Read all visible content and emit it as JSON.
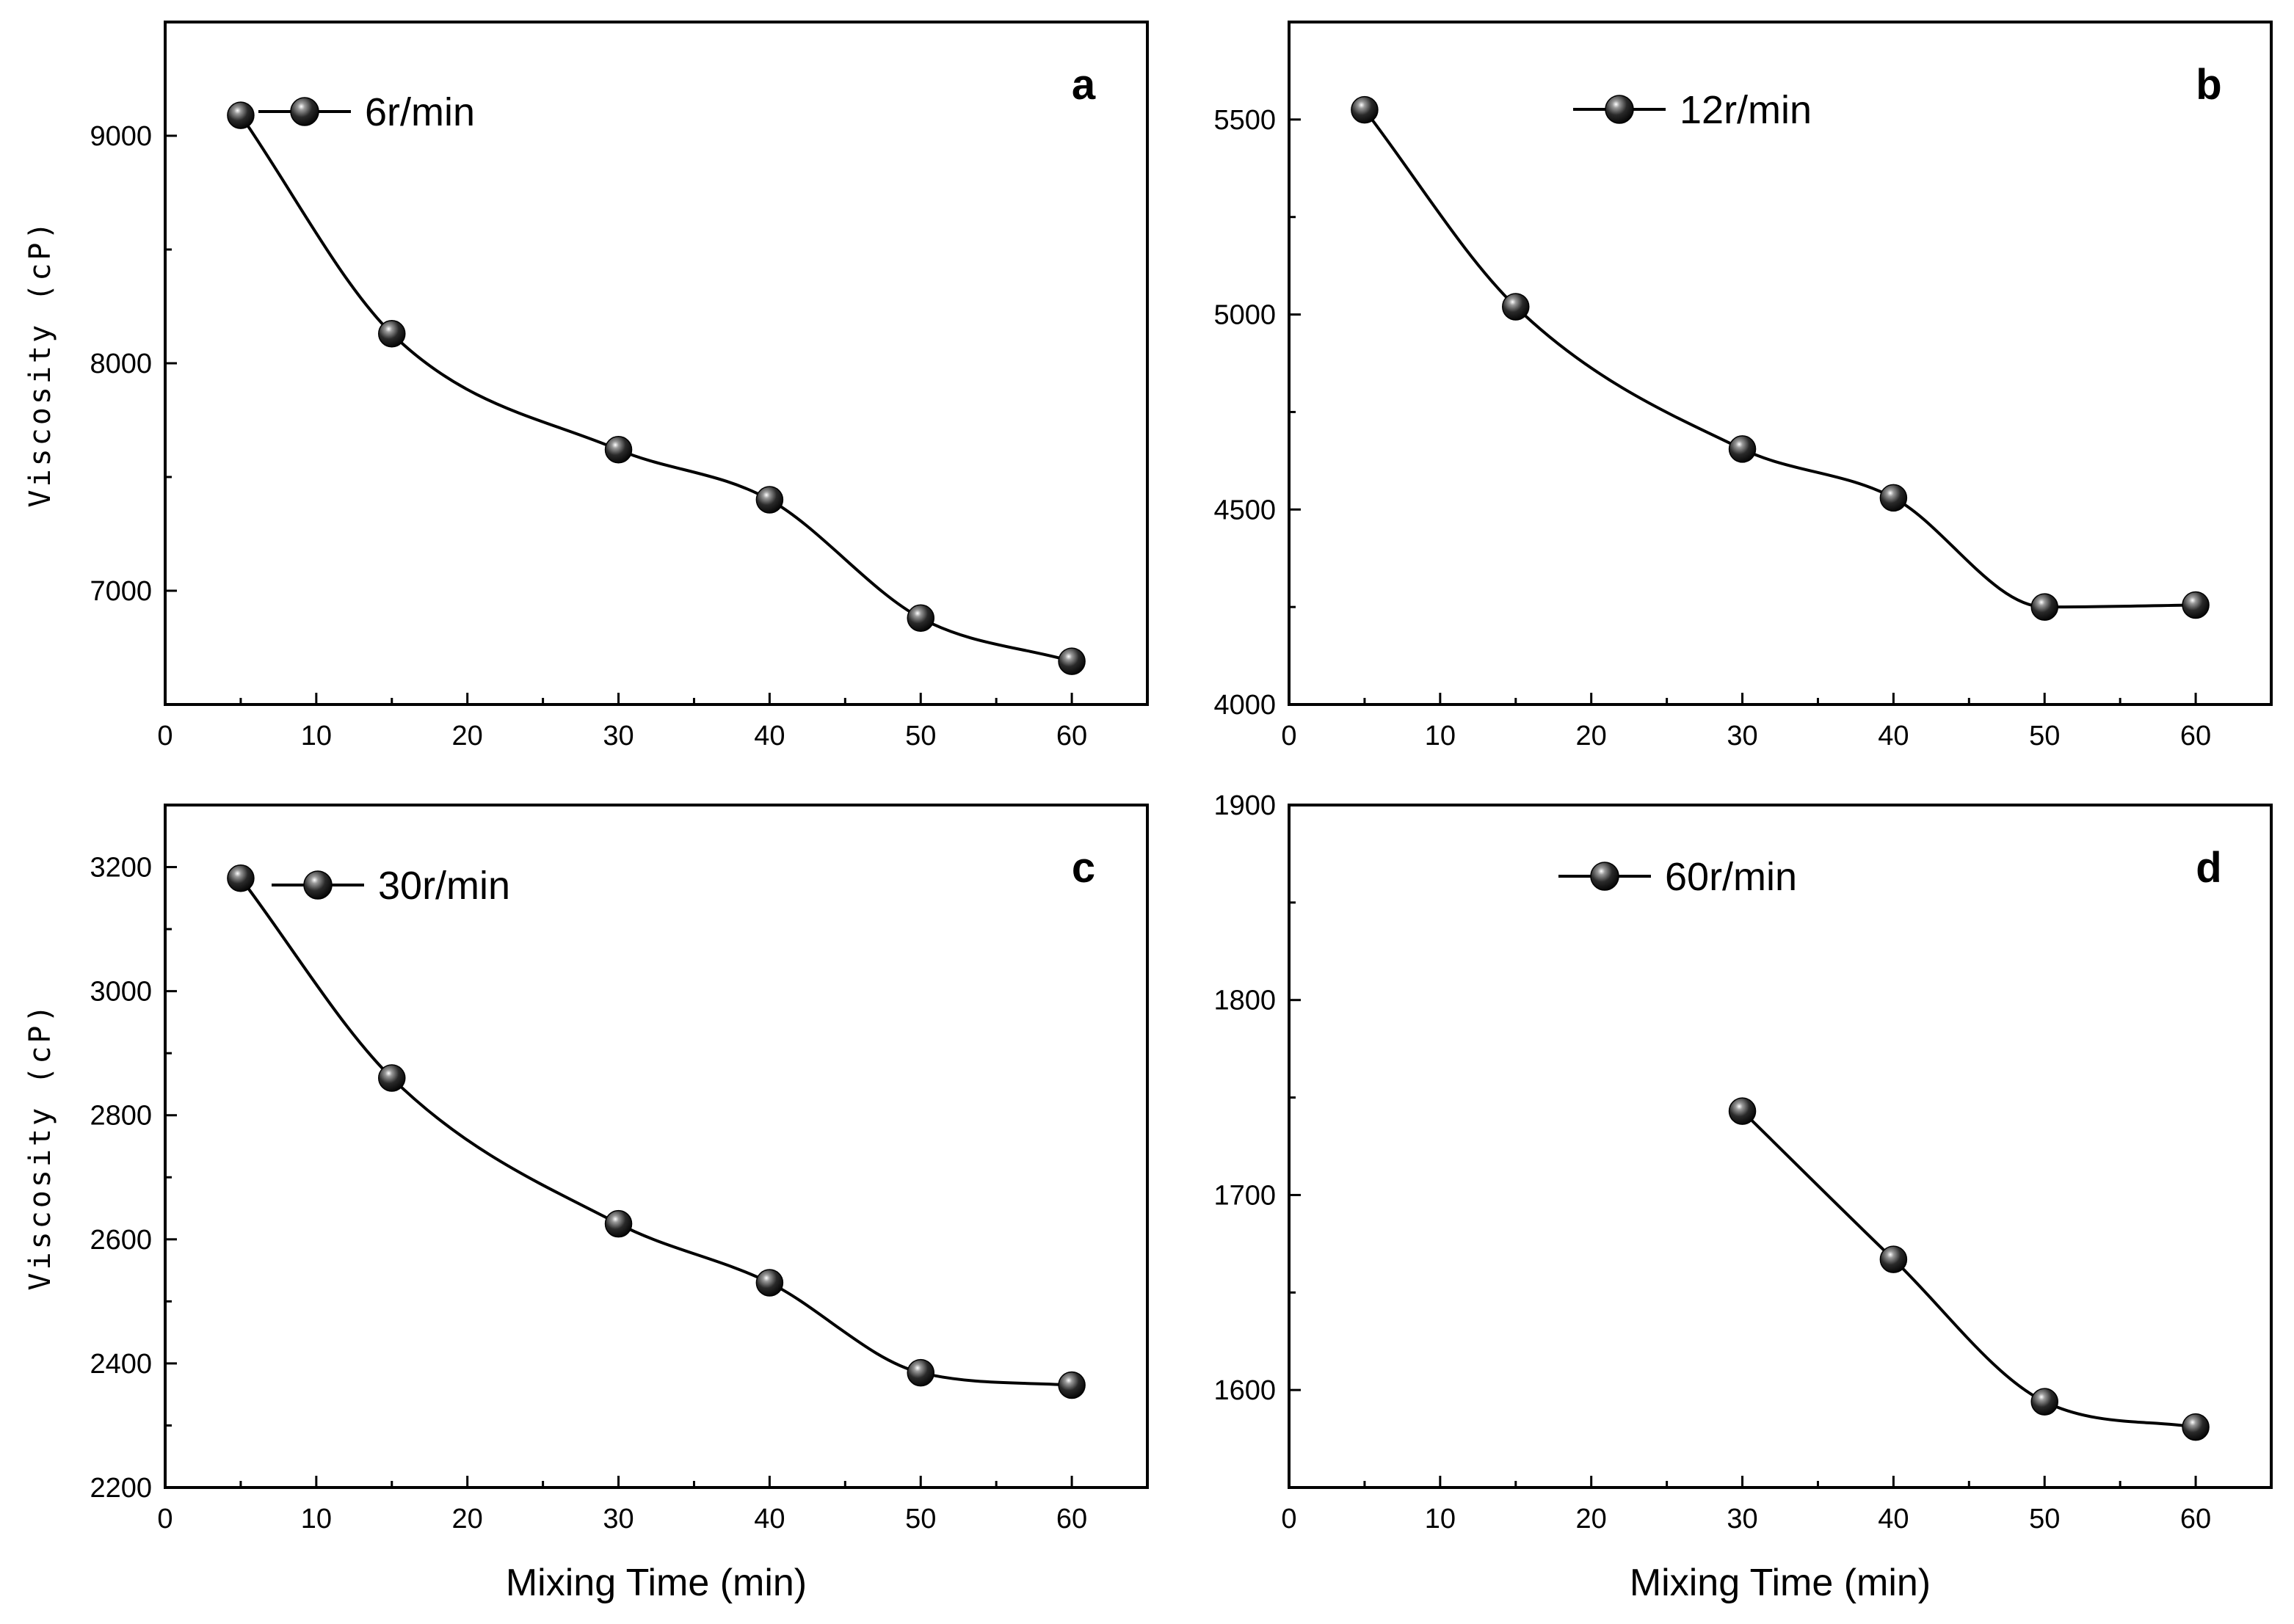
{
  "figure": {
    "marker_color": "#111111",
    "line_color": "#000000"
  },
  "chart_data": [
    {
      "type": "line",
      "panel_label": "a",
      "legend": "6r/min",
      "x": [
        5,
        15,
        30,
        40,
        50,
        60
      ],
      "y": [
        9090,
        8130,
        7620,
        7400,
        6880,
        6690
      ],
      "xlim": [
        0,
        65
      ],
      "ylim": [
        6500,
        9500
      ],
      "xticks": [
        0,
        10,
        20,
        30,
        40,
        50,
        60
      ],
      "yticks": [
        7000,
        8000,
        9000
      ],
      "xlabel": "",
      "ylabel": "Viscosity (cP)",
      "legend_position": "top-left"
    },
    {
      "type": "line",
      "panel_label": "b",
      "legend": "12r/min",
      "x": [
        5,
        15,
        30,
        40,
        50,
        60
      ],
      "y": [
        5525,
        5020,
        4655,
        4530,
        4250,
        4255
      ],
      "xlim": [
        0,
        65
      ],
      "ylim": [
        4000,
        5750
      ],
      "xticks": [
        0,
        10,
        20,
        30,
        40,
        50,
        60
      ],
      "yticks": [
        4000,
        4500,
        5000,
        5500
      ],
      "xlabel": "",
      "ylabel": "",
      "legend_position": "top-left"
    },
    {
      "type": "line",
      "panel_label": "c",
      "legend": "30r/min",
      "x": [
        5,
        15,
        30,
        40,
        50,
        60
      ],
      "y": [
        3182,
        2860,
        2625,
        2530,
        2385,
        2365
      ],
      "xlim": [
        0,
        65
      ],
      "ylim": [
        2200,
        3300
      ],
      "xticks": [
        0,
        10,
        20,
        30,
        40,
        50,
        60
      ],
      "yticks": [
        2200,
        2400,
        2600,
        2800,
        3000,
        3200
      ],
      "xlabel": "Mixing Time (min)",
      "ylabel": "Viscosity (cP)",
      "legend_position": "top-left"
    },
    {
      "type": "line",
      "panel_label": "d",
      "legend": "60r/min",
      "x": [
        30,
        40,
        50,
        60
      ],
      "y": [
        1743,
        1667,
        1594,
        1581
      ],
      "xlim": [
        0,
        65
      ],
      "ylim": [
        1550,
        1900
      ],
      "xticks": [
        0,
        10,
        20,
        30,
        40,
        50,
        60
      ],
      "yticks": [
        1600,
        1700,
        1800,
        1900
      ],
      "xlabel": "Mixing Time (min)",
      "ylabel": "",
      "legend_position": "top-left"
    }
  ]
}
